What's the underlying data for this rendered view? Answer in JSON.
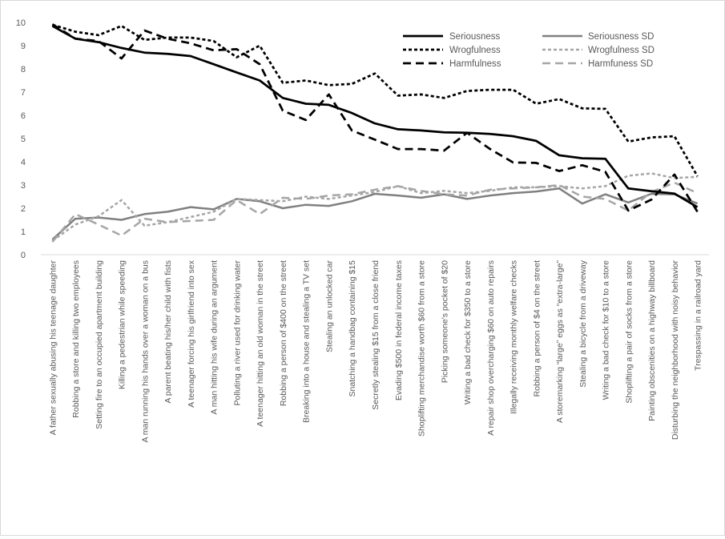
{
  "chart_data": {
    "type": "line",
    "ylim": [
      0,
      10
    ],
    "yticks": [
      "0",
      "1",
      "2",
      "3",
      "4",
      "5",
      "6",
      "7",
      "8",
      "9",
      "10"
    ],
    "grid": false,
    "legend_position": "top-right",
    "categories": [
      "A father sexually abusing his teenage daughter",
      "Robbing a store and killing two employees",
      "Setting fire to an occupied apartment building",
      "Killing a pedestrian while speeding",
      "A man running his hands over a woman on a bus",
      "A parent beating his/her child with fists",
      "A teenager forcing his girlfriend into sex",
      "A man hitting his wife during an argument",
      "Polluting a river used for drinking water",
      "A teenager hitting an old woman in the street",
      "Robbing a person of $400 on the street",
      "Breaking into a house and stealing a TV set",
      "Stealing an unlocked car",
      "Snatching a handbag containing $15",
      "Secretly stealing $15 from a close friend",
      "Evading $500 in federal income taxes",
      "Shoplifting merchandise worth $60 from a store",
      "Picking someone's pocket of $20",
      "Writing a bad check for $350 to a store",
      "A repair shop overcharging $60 on auto repairs",
      "Illegally receiving monthly welfare checks",
      "Robbing a person of $4 on the street",
      "A storemarking “large” eggs as “extra-large”",
      "Stealing a bicycle from a driveway",
      "Writing a bad check for $10 to a store",
      "Shoplifting a pair of socks from a store",
      "Painting obscenities on a highway billboard",
      "Disturbing the neighborhood with noisy behavior",
      "Trespassing in a railroad yard"
    ],
    "series": [
      {
        "name": "Seriousness",
        "color": "#000000",
        "dash": "solid",
        "values": [
          9.85,
          9.3,
          9.15,
          8.9,
          8.7,
          8.65,
          8.55,
          8.2,
          7.85,
          7.5,
          6.75,
          6.5,
          6.45,
          6.1,
          5.65,
          5.4,
          5.35,
          5.27,
          5.25,
          5.2,
          5.1,
          4.9,
          4.28,
          4.15,
          4.13,
          2.85,
          2.73,
          2.63,
          2.05
        ]
      },
      {
        "name": "Wrogfulness",
        "color": "#000000",
        "dash": "short",
        "values": [
          9.9,
          9.6,
          9.45,
          9.85,
          9.25,
          9.35,
          9.35,
          9.2,
          8.5,
          9.0,
          7.4,
          7.5,
          7.3,
          7.35,
          7.8,
          6.85,
          6.9,
          6.75,
          7.05,
          7.1,
          7.1,
          6.5,
          6.7,
          6.3,
          6.28,
          4.87,
          5.05,
          5.1,
          3.38
        ]
      },
      {
        "name": "Harmfulness",
        "color": "#000000",
        "dash": "long",
        "values": [
          9.92,
          9.3,
          9.2,
          8.45,
          9.65,
          9.3,
          9.1,
          8.8,
          8.85,
          8.2,
          6.2,
          5.8,
          6.9,
          5.35,
          4.95,
          4.55,
          4.55,
          4.48,
          5.25,
          4.55,
          3.97,
          3.95,
          3.6,
          3.85,
          3.57,
          1.9,
          2.37,
          3.45,
          1.85
        ]
      },
      {
        "name": "Seriousness SD",
        "color": "#808080",
        "dash": "solid",
        "values": [
          0.65,
          1.55,
          1.6,
          1.5,
          1.75,
          1.85,
          2.05,
          1.95,
          2.4,
          2.3,
          2.0,
          2.15,
          2.1,
          2.3,
          2.62,
          2.55,
          2.45,
          2.6,
          2.4,
          2.55,
          2.65,
          2.72,
          2.85,
          2.2,
          2.6,
          2.25,
          2.62,
          2.6,
          2.2
        ]
      },
      {
        "name": "Wrogfulness SD",
        "color": "#a6a6a6",
        "dash": "short",
        "values": [
          0.6,
          1.3,
          1.65,
          2.35,
          1.25,
          1.4,
          1.62,
          1.85,
          2.4,
          2.35,
          2.3,
          2.5,
          2.4,
          2.55,
          2.7,
          2.95,
          2.65,
          2.75,
          2.65,
          2.75,
          2.9,
          2.9,
          2.95,
          2.85,
          2.95,
          3.4,
          3.5,
          3.3,
          3.35
        ]
      },
      {
        "name": "Harmfuness SD",
        "color": "#a6a6a6",
        "dash": "long",
        "values": [
          0.55,
          1.75,
          1.3,
          0.82,
          1.55,
          1.4,
          1.45,
          1.5,
          2.35,
          1.75,
          2.45,
          2.4,
          2.55,
          2.6,
          2.8,
          2.95,
          2.75,
          2.6,
          2.55,
          2.8,
          2.85,
          2.9,
          3.0,
          2.5,
          2.4,
          1.9,
          2.7,
          3.1,
          2.65
        ]
      }
    ]
  }
}
